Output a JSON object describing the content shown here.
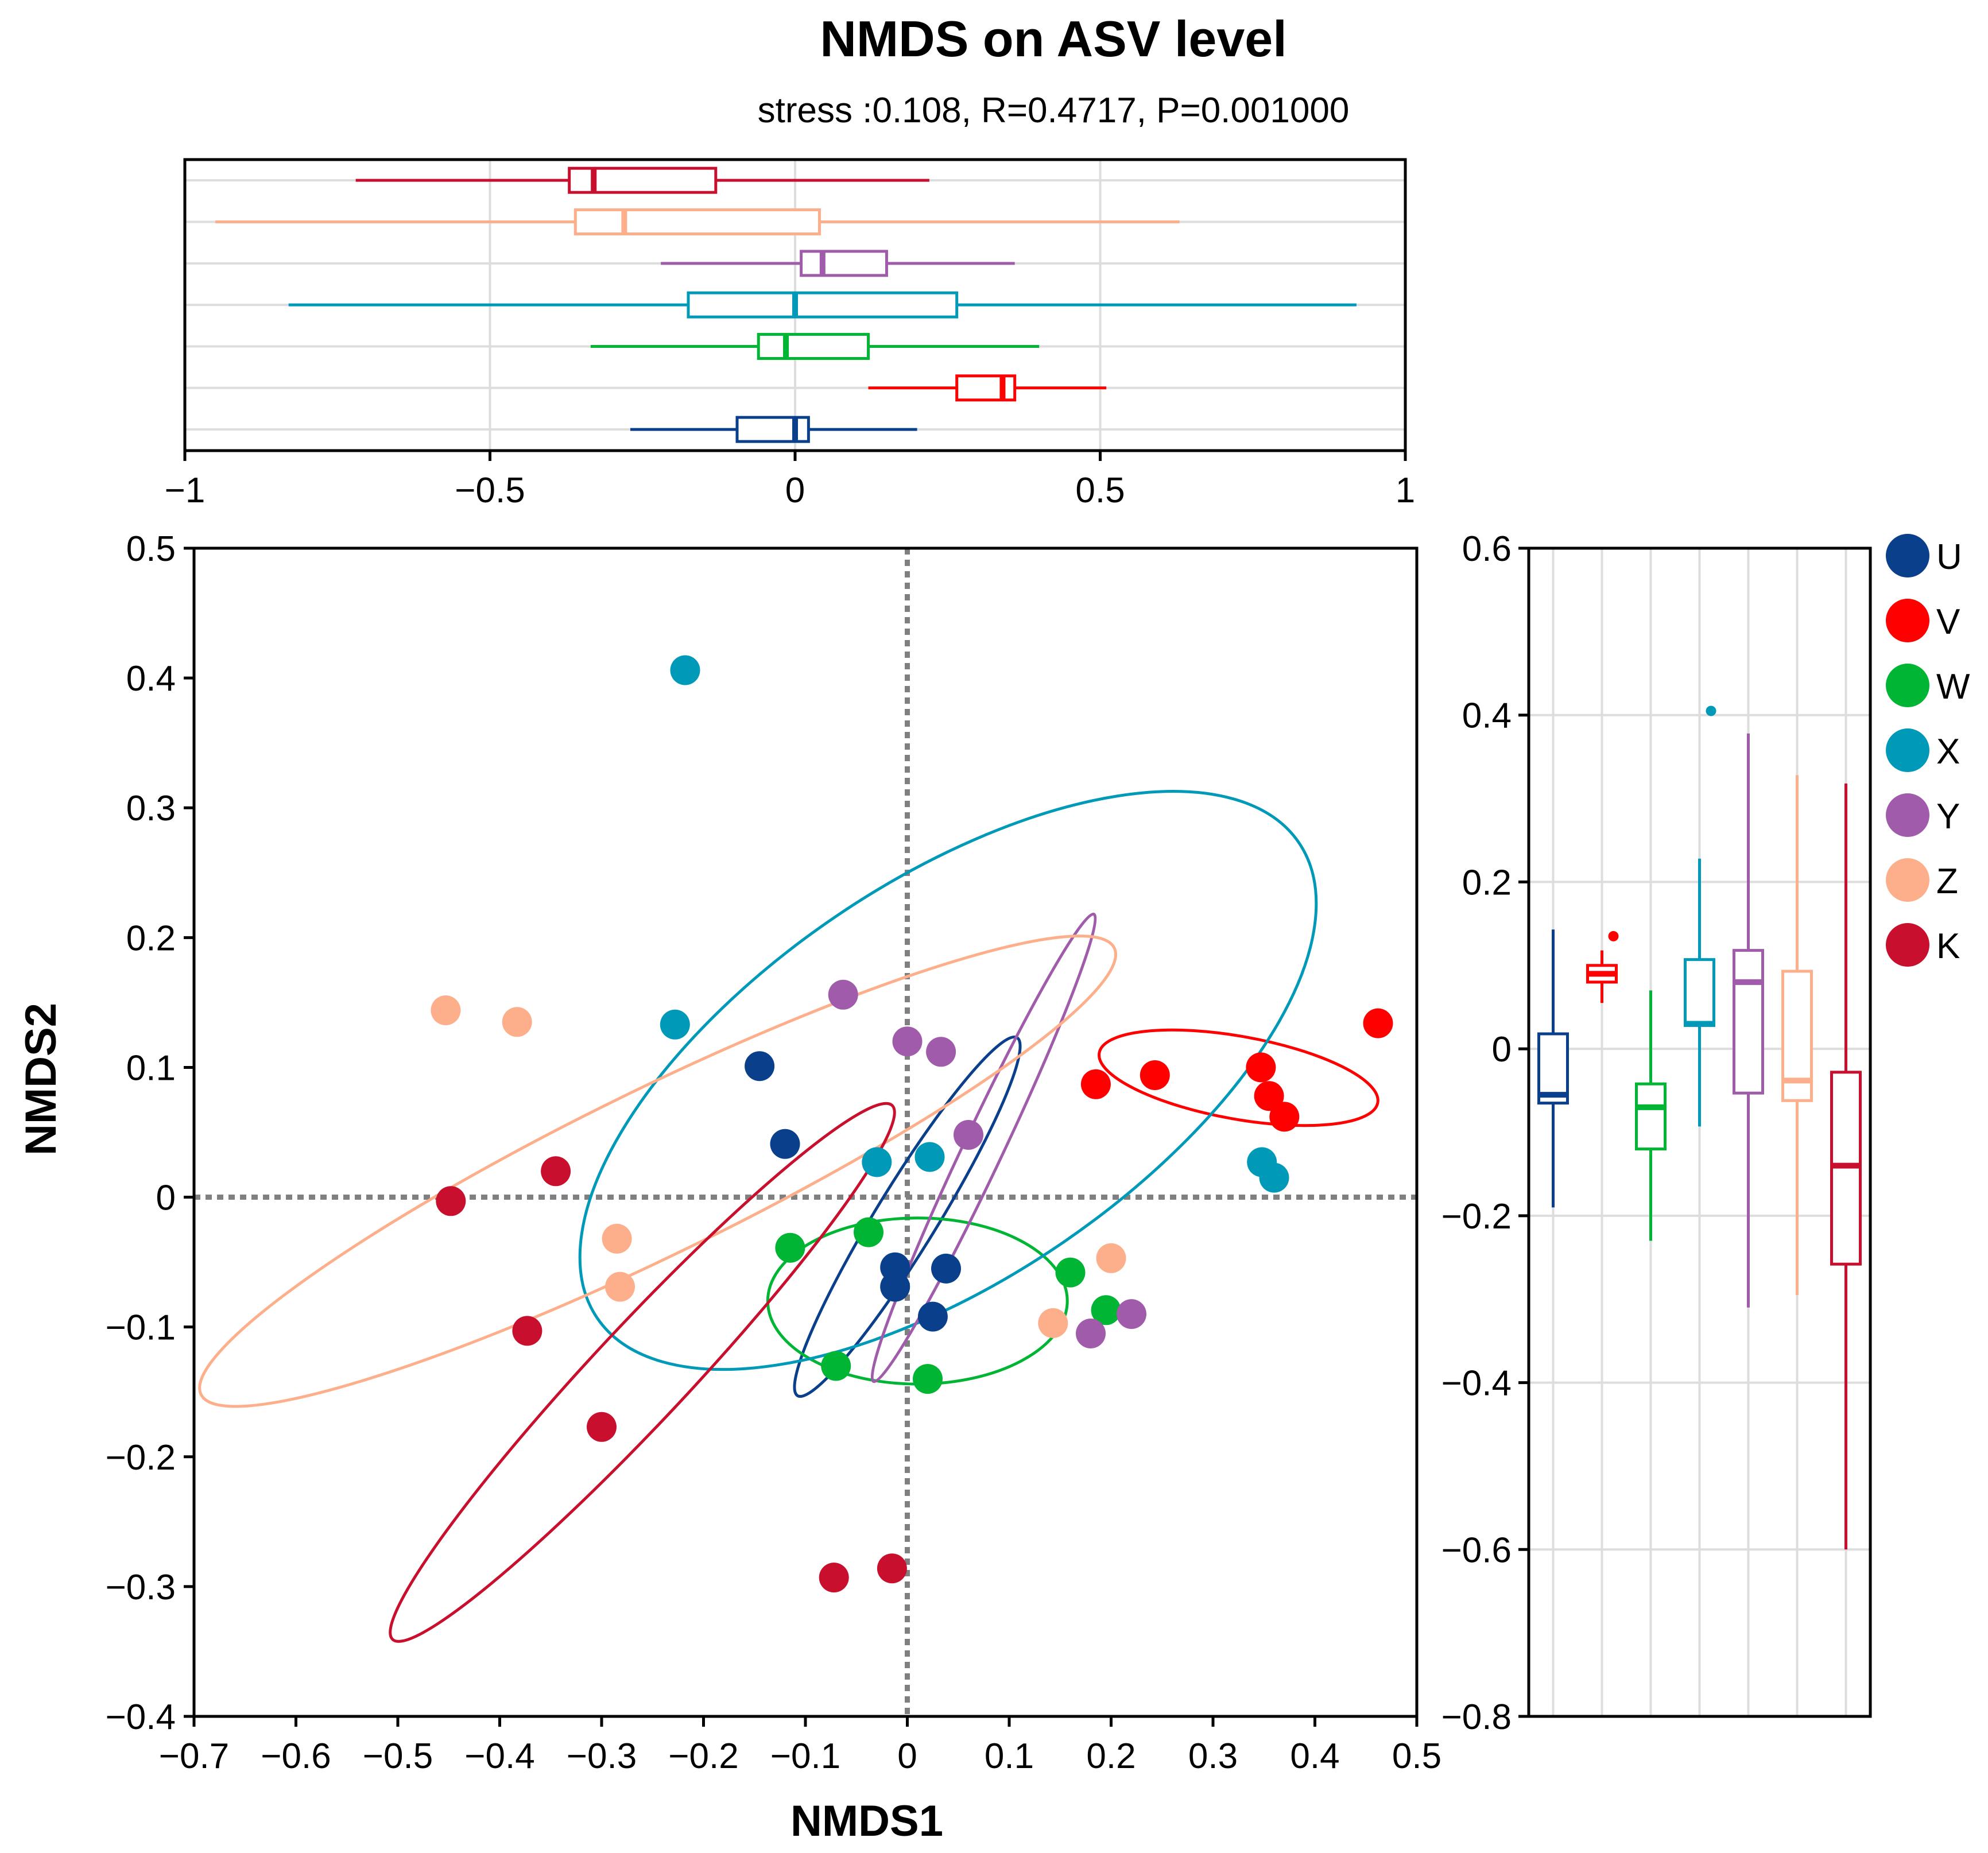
{
  "chart_data": {
    "type": "scatter",
    "title": "NMDS on ASV level",
    "subtitle": "stress :0.108, R=0.4717, P=0.001000",
    "xlabel": "NMDS1",
    "ylabel": "NMDS2",
    "xlim": [
      -0.7,
      0.5
    ],
    "ylim": [
      -0.4,
      0.5
    ],
    "xticks": [
      -0.7,
      -0.6,
      -0.5,
      -0.4,
      -0.3,
      -0.2,
      -0.1,
      0,
      0.1,
      0.2,
      0.3,
      0.4,
      0.5
    ],
    "xtick_labels": [
      "−0.7",
      "−0.6",
      "−0.5",
      "−0.4",
      "−0.3",
      "−0.2",
      "−0.1",
      "0",
      "0.1",
      "0.2",
      "0.3",
      "0.4",
      "0.5"
    ],
    "yticks": [
      -0.4,
      -0.3,
      -0.2,
      -0.1,
      0,
      0.1,
      0.2,
      0.3,
      0.4,
      0.5
    ],
    "ytick_labels": [
      "−0.4",
      "−0.3",
      "−0.2",
      "−0.1",
      "0",
      "0.1",
      "0.2",
      "0.3",
      "0.4",
      "0.5"
    ],
    "top_box": {
      "xlim": [
        -1,
        1
      ],
      "xticks": [
        -1,
        -0.5,
        0,
        0.5,
        1
      ],
      "xtick_labels": [
        "−1",
        "−0.5",
        "0",
        "0.5",
        "1"
      ]
    },
    "right_box": {
      "ylim": [
        -0.8,
        0.6
      ],
      "yticks": [
        -0.8,
        -0.6,
        -0.4,
        -0.2,
        0,
        0.2,
        0.4,
        0.6
      ],
      "ytick_labels": [
        "−0.8",
        "−0.6",
        "−0.4",
        "−0.2",
        "0",
        "0.2",
        "0.4",
        "0.6"
      ]
    },
    "legend_position": "right",
    "series": [
      {
        "name": "U",
        "color": "#0A3F8C",
        "points": [
          [
            -0.145,
            0.101
          ],
          [
            -0.12,
            0.041
          ],
          [
            -0.012,
            -0.054
          ],
          [
            0.038,
            -0.055
          ],
          [
            -0.012,
            -0.069
          ],
          [
            0.025,
            -0.092
          ]
        ],
        "ellipse": {
          "cx": 0.0,
          "cy": -0.015,
          "rx": 0.175,
          "ry": 0.027,
          "angle_deg": -52
        },
        "box_x": {
          "wmin": -0.27,
          "q1": -0.095,
          "median": 0.0,
          "q3": 0.022,
          "wmax": 0.2
        },
        "box_y": {
          "wmin": -0.19,
          "q1": -0.065,
          "median": -0.055,
          "q3": 0.018,
          "wmax": 0.143,
          "outliers": []
        }
      },
      {
        "name": "V",
        "color": "#FF0000",
        "points": [
          [
            0.185,
            0.087
          ],
          [
            0.243,
            0.094
          ],
          [
            0.347,
            0.1
          ],
          [
            0.355,
            0.078
          ],
          [
            0.37,
            0.062
          ],
          [
            0.462,
            0.134
          ]
        ],
        "ellipse": {
          "cx": 0.325,
          "cy": 0.092,
          "rx": 0.138,
          "ry": 0.032,
          "angle_deg": 8
        },
        "box_x": {
          "wmin": 0.12,
          "q1": 0.265,
          "median": 0.34,
          "q3": 0.36,
          "wmax": 0.51
        },
        "box_y": {
          "wmin": 0.055,
          "q1": 0.08,
          "median": 0.09,
          "q3": 0.1,
          "wmax": 0.118,
          "outliers": [
            0.135
          ]
        }
      },
      {
        "name": "W",
        "color": "#00B533",
        "points": [
          [
            -0.115,
            -0.039
          ],
          [
            -0.038,
            -0.027
          ],
          [
            0.16,
            -0.058
          ],
          [
            0.195,
            -0.087
          ],
          [
            -0.07,
            -0.13
          ],
          [
            0.02,
            -0.14
          ]
        ],
        "ellipse": {
          "cx": 0.01,
          "cy": -0.08,
          "rx": 0.147,
          "ry": 0.064,
          "angle_deg": 0
        },
        "box_x": {
          "wmin": -0.335,
          "q1": -0.06,
          "median": -0.015,
          "q3": 0.12,
          "wmax": 0.4
        },
        "box_y": {
          "wmin": -0.23,
          "q1": -0.12,
          "median": -0.07,
          "q3": -0.042,
          "wmax": 0.07,
          "outliers": []
        }
      },
      {
        "name": "X",
        "color": "#0099B8",
        "points": [
          [
            -0.218,
            0.406
          ],
          [
            -0.228,
            0.133
          ],
          [
            -0.03,
            0.027
          ],
          [
            0.022,
            0.031
          ],
          [
            0.348,
            0.027
          ],
          [
            0.36,
            0.015
          ]
        ],
        "ellipse": {
          "cx": 0.04,
          "cy": 0.09,
          "rx": 0.39,
          "ry": 0.16,
          "angle_deg": -28
        },
        "box_x": {
          "wmin": -0.83,
          "q1": -0.175,
          "median": 0.0,
          "q3": 0.265,
          "wmax": 0.92
        },
        "box_y": {
          "wmin": -0.093,
          "q1": 0.028,
          "median": 0.03,
          "q3": 0.107,
          "wmax": 0.228,
          "outliers": [
            0.405
          ]
        }
      },
      {
        "name": "Y",
        "color": "#A05CAA",
        "points": [
          [
            -0.063,
            0.156
          ],
          [
            0.0,
            0.12
          ],
          [
            0.033,
            0.112
          ],
          [
            0.06,
            0.048
          ],
          [
            0.18,
            -0.105
          ],
          [
            0.22,
            -0.09
          ]
        ],
        "ellipse": {
          "cx": 0.075,
          "cy": 0.038,
          "rx": 0.21,
          "ry": 0.018,
          "angle_deg": -59
        },
        "box_x": {
          "wmin": -0.22,
          "q1": 0.01,
          "median": 0.045,
          "q3": 0.15,
          "wmax": 0.36
        },
        "box_y": {
          "wmin": -0.31,
          "q1": -0.053,
          "median": 0.08,
          "q3": 0.118,
          "wmax": 0.378,
          "outliers": []
        }
      },
      {
        "name": "Z",
        "color": "#FCAF8A",
        "points": [
          [
            -0.453,
            0.144
          ],
          [
            -0.383,
            0.135
          ],
          [
            -0.285,
            -0.032
          ],
          [
            -0.282,
            -0.069
          ],
          [
            0.2,
            -0.047
          ],
          [
            0.143,
            -0.097
          ]
        ],
        "ellipse": {
          "cx": -0.245,
          "cy": 0.02,
          "rx": 0.48,
          "ry": 0.065,
          "angle_deg": -21
        },
        "box_x": {
          "wmin": -0.95,
          "q1": -0.36,
          "median": -0.28,
          "q3": 0.04,
          "wmax": 0.63
        },
        "box_y": {
          "wmin": -0.295,
          "q1": -0.062,
          "median": -0.038,
          "q3": 0.093,
          "wmax": 0.328,
          "outliers": []
        }
      },
      {
        "name": "K",
        "color": "#C8102E",
        "points": [
          [
            -0.448,
            -0.003
          ],
          [
            -0.345,
            0.02
          ],
          [
            -0.373,
            -0.103
          ],
          [
            -0.3,
            -0.177
          ],
          [
            -0.072,
            -0.293
          ],
          [
            -0.015,
            -0.286
          ]
        ],
        "ellipse": {
          "cx": -0.26,
          "cy": -0.135,
          "rx": 0.32,
          "ry": 0.04,
          "angle_deg": -40
        },
        "box_x": {
          "wmin": -0.72,
          "q1": -0.37,
          "median": -0.33,
          "q3": -0.13,
          "wmax": 0.22
        },
        "box_y": {
          "wmin": -0.6,
          "q1": -0.258,
          "median": -0.14,
          "q3": -0.028,
          "wmax": 0.318,
          "outliers": []
        }
      }
    ]
  }
}
